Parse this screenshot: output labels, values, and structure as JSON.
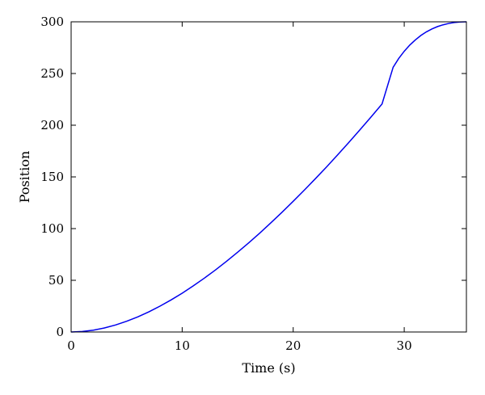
{
  "chart_data": {
    "type": "line",
    "title": "",
    "xlabel": "Time (s)",
    "ylabel": "Position",
    "xlim": [
      0,
      35.6
    ],
    "ylim": [
      0,
      300
    ],
    "xticks": [
      0,
      10,
      20,
      30
    ],
    "yticks": [
      0,
      50,
      100,
      150,
      200,
      250,
      300
    ],
    "grid": false,
    "legend": "none",
    "series": [
      {
        "color": "#0000ee",
        "x": [
          0,
          1,
          2,
          3,
          4,
          5,
          6,
          7,
          8,
          9,
          10,
          11,
          12,
          13,
          14,
          15,
          16,
          17,
          18,
          19,
          20,
          21,
          22,
          23,
          24,
          25,
          26,
          27,
          28,
          29,
          29.5,
          30,
          30.5,
          31,
          31.5,
          32,
          32.5,
          33,
          33.5,
          34,
          34.5,
          35,
          35.6
        ],
        "y": [
          0,
          0.5,
          1.8,
          3.9,
          6.8,
          10.4,
          14.6,
          19.5,
          25,
          31,
          37.5,
          44.6,
          52.1,
          60,
          68.4,
          77.2,
          86.3,
          95.8,
          105.7,
          115.9,
          126.4,
          137.2,
          148.3,
          159.6,
          171.3,
          183.2,
          195.4,
          207.8,
          220.5,
          256,
          264.5,
          271.5,
          277.5,
          282.5,
          286.8,
          290.3,
          293.1,
          295.4,
          297.1,
          298.4,
          299.3,
          299.8,
          300
        ]
      }
    ]
  }
}
